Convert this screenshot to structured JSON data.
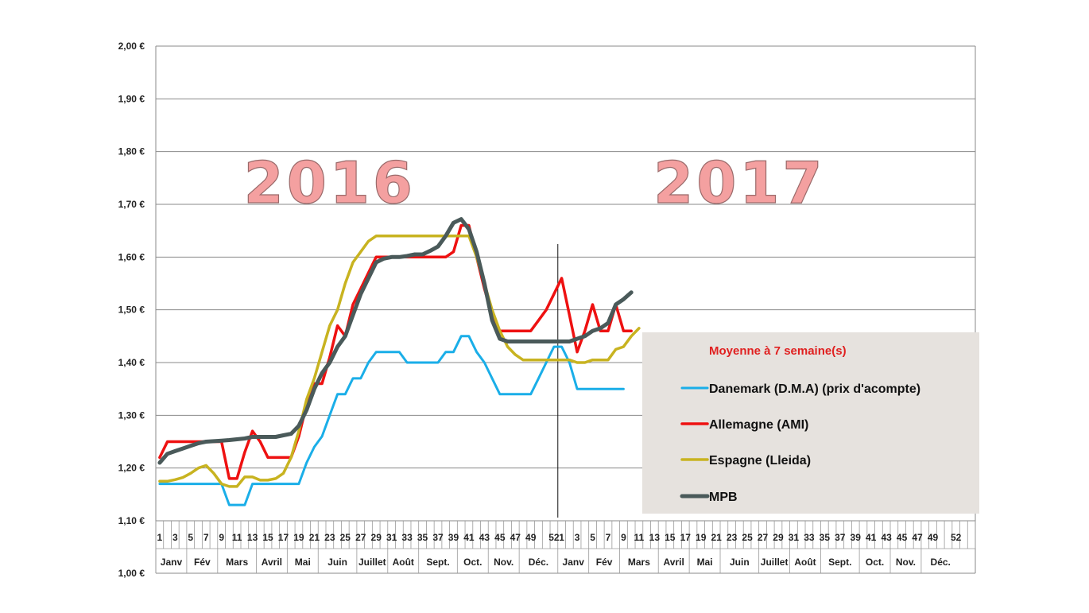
{
  "chart_data": {
    "type": "line",
    "title": "",
    "xlabel": "",
    "ylabel": "",
    "ylim": [
      1.0,
      2.0
    ],
    "y_ticks": [
      "1,00 €",
      "1,10 €",
      "1,20 €",
      "1,30 €",
      "1,40 €",
      "1,50 €",
      "1,60 €",
      "1,70 €",
      "1,80 €",
      "1,90 €",
      "2,00 €"
    ],
    "y_tick_values": [
      1.0,
      1.1,
      1.2,
      1.3,
      1.4,
      1.5,
      1.6,
      1.7,
      1.8,
      1.9,
      2.0
    ],
    "week_slots": 53,
    "week_labels": [
      {
        "week": 1,
        "label": "1"
      },
      {
        "week": 3,
        "label": "3"
      },
      {
        "week": 5,
        "label": "5"
      },
      {
        "week": 7,
        "label": "7"
      },
      {
        "week": 9,
        "label": "9"
      },
      {
        "week": 11,
        "label": "11"
      },
      {
        "week": 13,
        "label": "13"
      },
      {
        "week": 15,
        "label": "15"
      },
      {
        "week": 17,
        "label": "17"
      },
      {
        "week": 19,
        "label": "19"
      },
      {
        "week": 21,
        "label": "21"
      },
      {
        "week": 23,
        "label": "23"
      },
      {
        "week": 25,
        "label": "25"
      },
      {
        "week": 27,
        "label": "27"
      },
      {
        "week": 29,
        "label": "29"
      },
      {
        "week": 31,
        "label": "31"
      },
      {
        "week": 33,
        "label": "33"
      },
      {
        "week": 35,
        "label": "35"
      },
      {
        "week": 37,
        "label": "37"
      },
      {
        "week": 39,
        "label": "39"
      },
      {
        "week": 41,
        "label": "41"
      },
      {
        "week": 43,
        "label": "43"
      },
      {
        "week": 45,
        "label": "45"
      },
      {
        "week": 47,
        "label": "47"
      },
      {
        "week": 49,
        "label": "49"
      },
      {
        "week": 52,
        "label": "52"
      },
      {
        "week": 53,
        "label": "1"
      },
      {
        "week": 55,
        "label": "3"
      },
      {
        "week": 57,
        "label": "5"
      },
      {
        "week": 59,
        "label": "7"
      },
      {
        "week": 61,
        "label": "9"
      },
      {
        "week": 63,
        "label": "11"
      },
      {
        "week": 65,
        "label": "13"
      },
      {
        "week": 67,
        "label": "15"
      },
      {
        "week": 69,
        "label": "17"
      },
      {
        "week": 71,
        "label": "19"
      },
      {
        "week": 73,
        "label": "21"
      },
      {
        "week": 75,
        "label": "23"
      },
      {
        "week": 77,
        "label": "25"
      },
      {
        "week": 79,
        "label": "27"
      },
      {
        "week": 81,
        "label": "29"
      },
      {
        "week": 83,
        "label": "31"
      },
      {
        "week": 85,
        "label": "33"
      },
      {
        "week": 87,
        "label": "35"
      },
      {
        "week": 89,
        "label": "37"
      },
      {
        "week": 91,
        "label": "39"
      },
      {
        "week": 93,
        "label": "41"
      },
      {
        "week": 95,
        "label": "43"
      },
      {
        "week": 97,
        "label": "45"
      },
      {
        "week": 99,
        "label": "47"
      },
      {
        "week": 101,
        "label": "49"
      },
      {
        "week": 104,
        "label": "52"
      }
    ],
    "months": [
      {
        "label": "Janv",
        "start": 1,
        "end": 5
      },
      {
        "label": "Fév",
        "start": 5,
        "end": 9
      },
      {
        "label": "Mars",
        "start": 9,
        "end": 14
      },
      {
        "label": "Avril",
        "start": 14,
        "end": 18
      },
      {
        "label": "Mai",
        "start": 18,
        "end": 22
      },
      {
        "label": "Juin",
        "start": 22,
        "end": 27
      },
      {
        "label": "Juillet",
        "start": 27,
        "end": 31
      },
      {
        "label": "Août",
        "start": 31,
        "end": 35
      },
      {
        "label": "Sept.",
        "start": 35,
        "end": 40
      },
      {
        "label": "Oct.",
        "start": 40,
        "end": 44
      },
      {
        "label": "Nov.",
        "start": 44,
        "end": 48
      },
      {
        "label": "Déc.",
        "start": 48,
        "end": 53
      },
      {
        "label": "Janv",
        "start": 53,
        "end": 57
      },
      {
        "label": "Fév",
        "start": 57,
        "end": 61
      },
      {
        "label": "Mars",
        "start": 61,
        "end": 66
      },
      {
        "label": "Avril",
        "start": 66,
        "end": 70
      },
      {
        "label": "Mai",
        "start": 70,
        "end": 74
      },
      {
        "label": "Juin",
        "start": 74,
        "end": 79
      },
      {
        "label": "Juillet",
        "start": 79,
        "end": 83
      },
      {
        "label": "Août",
        "start": 83,
        "end": 87
      },
      {
        "label": "Sept.",
        "start": 87,
        "end": 92
      },
      {
        "label": "Oct.",
        "start": 92,
        "end": 96
      },
      {
        "label": "Nov.",
        "start": 96,
        "end": 100
      },
      {
        "label": "Déc.",
        "start": 100,
        "end": 105
      }
    ],
    "year_labels": [
      {
        "label": "2016",
        "week": 23
      },
      {
        "label": "2017",
        "week": 76
      }
    ],
    "divider_week": 53,
    "legend": {
      "title": "Moyenne à  7 semaine(s)",
      "position": "right"
    },
    "series": [
      {
        "name": "Danemark (D.M.A) (prix d'acompte)",
        "color": "#1aaee8",
        "width": 3,
        "points": [
          [
            1,
            1.17
          ],
          [
            9,
            1.17
          ],
          [
            10,
            1.13
          ],
          [
            12,
            1.13
          ],
          [
            13,
            1.17
          ],
          [
            19,
            1.17
          ],
          [
            20,
            1.21
          ],
          [
            21,
            1.24
          ],
          [
            22,
            1.26
          ],
          [
            23,
            1.3
          ],
          [
            24,
            1.34
          ],
          [
            25,
            1.34
          ],
          [
            26,
            1.37
          ],
          [
            27,
            1.37
          ],
          [
            28,
            1.4
          ],
          [
            29,
            1.42
          ],
          [
            32,
            1.42
          ],
          [
            33,
            1.4
          ],
          [
            37,
            1.4
          ],
          [
            38,
            1.42
          ],
          [
            39,
            1.42
          ],
          [
            40,
            1.45
          ],
          [
            41,
            1.45
          ],
          [
            42,
            1.42
          ],
          [
            43,
            1.4
          ],
          [
            45,
            1.34
          ],
          [
            49,
            1.34
          ],
          [
            50,
            1.37
          ],
          [
            51,
            1.4
          ],
          [
            52,
            1.43
          ],
          [
            53,
            1.43
          ],
          [
            54,
            1.4
          ],
          [
            55,
            1.35
          ],
          [
            61,
            1.35
          ]
        ]
      },
      {
        "name": "Allemagne (AMI)",
        "color": "#ee1111",
        "width": 3.5,
        "points": [
          [
            1,
            1.22
          ],
          [
            2,
            1.25
          ],
          [
            8,
            1.25
          ],
          [
            9,
            1.25
          ],
          [
            10,
            1.18
          ],
          [
            11,
            1.18
          ],
          [
            12,
            1.23
          ],
          [
            13,
            1.27
          ],
          [
            14,
            1.25
          ],
          [
            15,
            1.22
          ],
          [
            18,
            1.22
          ],
          [
            19,
            1.26
          ],
          [
            20,
            1.32
          ],
          [
            21,
            1.36
          ],
          [
            22,
            1.36
          ],
          [
            23,
            1.41
          ],
          [
            24,
            1.47
          ],
          [
            25,
            1.45
          ],
          [
            26,
            1.51
          ],
          [
            27,
            1.54
          ],
          [
            28,
            1.57
          ],
          [
            29,
            1.6
          ],
          [
            38,
            1.6
          ],
          [
            39,
            1.61
          ],
          [
            40,
            1.66
          ],
          [
            41,
            1.66
          ],
          [
            42,
            1.6
          ],
          [
            43,
            1.54
          ],
          [
            44,
            1.49
          ],
          [
            45,
            1.46
          ],
          [
            49,
            1.46
          ],
          [
            50,
            1.48
          ],
          [
            51,
            1.5
          ],
          [
            52,
            1.53
          ],
          [
            53,
            1.56
          ],
          [
            54,
            1.49
          ],
          [
            55,
            1.42
          ],
          [
            56,
            1.46
          ],
          [
            57,
            1.51
          ],
          [
            58,
            1.46
          ],
          [
            59,
            1.46
          ],
          [
            60,
            1.51
          ],
          [
            61,
            1.46
          ],
          [
            62,
            1.46
          ]
        ]
      },
      {
        "name": "Espagne (Lleida)",
        "color": "#c8b320",
        "width": 3.5,
        "points": [
          [
            1,
            1.175
          ],
          [
            2,
            1.175
          ],
          [
            3,
            1.178
          ],
          [
            4,
            1.182
          ],
          [
            5,
            1.19
          ],
          [
            6,
            1.2
          ],
          [
            7,
            1.205
          ],
          [
            8,
            1.19
          ],
          [
            9,
            1.17
          ],
          [
            10,
            1.165
          ],
          [
            11,
            1.165
          ],
          [
            12,
            1.183
          ],
          [
            13,
            1.183
          ],
          [
            14,
            1.177
          ],
          [
            15,
            1.177
          ],
          [
            16,
            1.18
          ],
          [
            17,
            1.19
          ],
          [
            18,
            1.22
          ],
          [
            19,
            1.27
          ],
          [
            20,
            1.33
          ],
          [
            21,
            1.37
          ],
          [
            22,
            1.42
          ],
          [
            23,
            1.47
          ],
          [
            24,
            1.5
          ],
          [
            25,
            1.55
          ],
          [
            26,
            1.59
          ],
          [
            27,
            1.61
          ],
          [
            28,
            1.63
          ],
          [
            29,
            1.64
          ],
          [
            35,
            1.64
          ],
          [
            38,
            1.64
          ],
          [
            39,
            1.64
          ],
          [
            40,
            1.64
          ],
          [
            41,
            1.64
          ],
          [
            42,
            1.6
          ],
          [
            43,
            1.55
          ],
          [
            44,
            1.5
          ],
          [
            45,
            1.46
          ],
          [
            46,
            1.43
          ],
          [
            47,
            1.415
          ],
          [
            48,
            1.405
          ],
          [
            53,
            1.405
          ],
          [
            54,
            1.405
          ],
          [
            55,
            1.4
          ],
          [
            56,
            1.4
          ],
          [
            57,
            1.405
          ],
          [
            58,
            1.405
          ],
          [
            59,
            1.405
          ],
          [
            60,
            1.425
          ],
          [
            61,
            1.43
          ],
          [
            62,
            1.45
          ],
          [
            63,
            1.465
          ]
        ]
      },
      {
        "name": "MPB",
        "color": "#4a5a5a",
        "width": 5,
        "points": [
          [
            1,
            1.21
          ],
          [
            2,
            1.227
          ],
          [
            3,
            1.232
          ],
          [
            4,
            1.237
          ],
          [
            5,
            1.242
          ],
          [
            6,
            1.247
          ],
          [
            7,
            1.25
          ],
          [
            9,
            1.252
          ],
          [
            10,
            1.253
          ],
          [
            12,
            1.256
          ],
          [
            13,
            1.259
          ],
          [
            16,
            1.259
          ],
          [
            17,
            1.262
          ],
          [
            18,
            1.265
          ],
          [
            19,
            1.28
          ],
          [
            20,
            1.31
          ],
          [
            21,
            1.35
          ],
          [
            22,
            1.38
          ],
          [
            23,
            1.4
          ],
          [
            24,
            1.43
          ],
          [
            25,
            1.45
          ],
          [
            26,
            1.49
          ],
          [
            27,
            1.53
          ],
          [
            28,
            1.56
          ],
          [
            29,
            1.59
          ],
          [
            30,
            1.597
          ],
          [
            31,
            1.6
          ],
          [
            32,
            1.6
          ],
          [
            33,
            1.602
          ],
          [
            34,
            1.605
          ],
          [
            35,
            1.605
          ],
          [
            36,
            1.612
          ],
          [
            37,
            1.62
          ],
          [
            38,
            1.64
          ],
          [
            39,
            1.665
          ],
          [
            40,
            1.672
          ],
          [
            41,
            1.653
          ],
          [
            42,
            1.61
          ],
          [
            43,
            1.55
          ],
          [
            44,
            1.48
          ],
          [
            45,
            1.445
          ],
          [
            46,
            1.44
          ],
          [
            53,
            1.44
          ],
          [
            54,
            1.44
          ],
          [
            55,
            1.445
          ],
          [
            56,
            1.45
          ],
          [
            57,
            1.46
          ],
          [
            58,
            1.465
          ],
          [
            59,
            1.475
          ],
          [
            60,
            1.51
          ],
          [
            61,
            1.52
          ],
          [
            62,
            1.533
          ]
        ]
      }
    ]
  }
}
